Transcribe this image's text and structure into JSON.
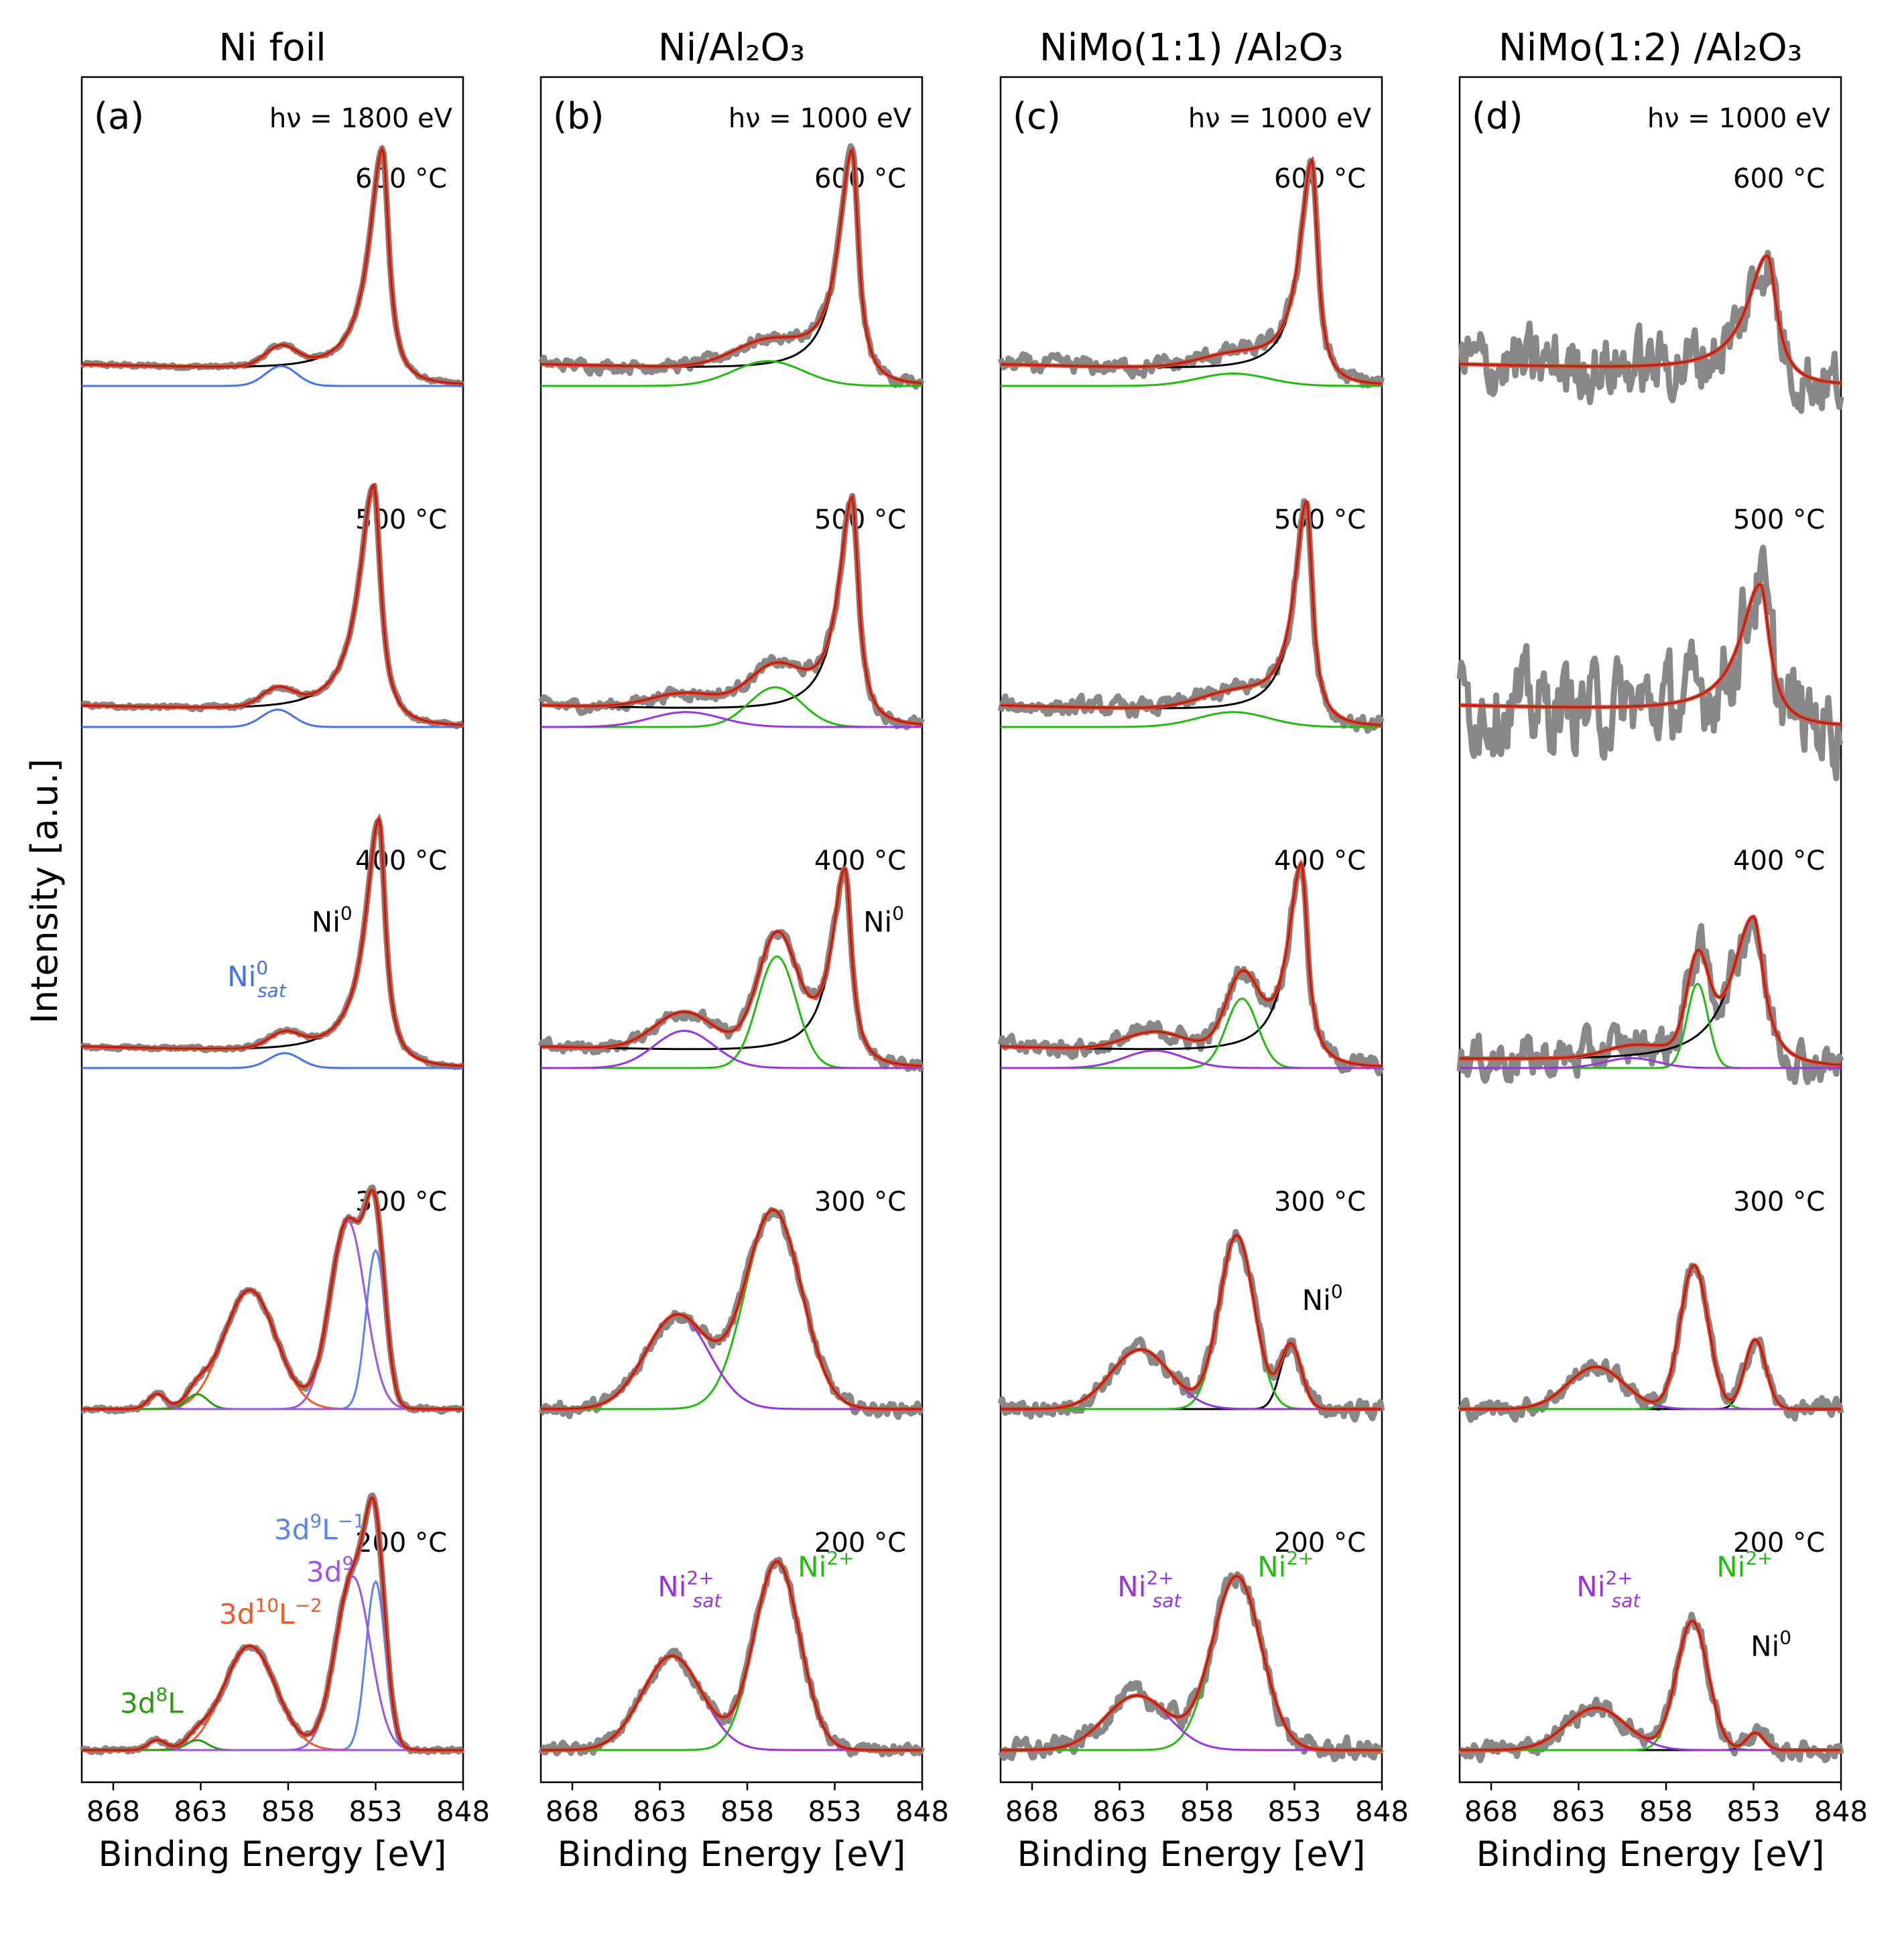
{
  "figure": {
    "ylabel": "Intensity [a.u.]",
    "xlabel": "Binding Energy [eV]"
  },
  "colors": {
    "data": "#888888",
    "envelope": "#e8412a",
    "background": "#000000",
    "ni0_sat": "#4472e8",
    "ni2": "#22bb11",
    "ni2_sat": "#9933dd",
    "d9L": "#5b82f0",
    "d9": "#9955ee",
    "d10L2": "#f05a2a",
    "d8L": "#2a9a10"
  },
  "chart_data": [
    {
      "type": "line",
      "title": "Ni foil",
      "panel_label": "(a)",
      "photon_energy": "hν = 1800 eV",
      "xlim": [
        869.8,
        848
      ],
      "xticks": [
        868,
        863,
        858,
        853,
        848
      ],
      "xtick_labels": [
        "868",
        "863",
        "858",
        "853",
        "848"
      ],
      "rows": [
        {
          "temperature": "600 °C",
          "noise": 0.006,
          "components": [
            {
              "kind": "bg_ni0",
              "color": "black",
              "pos": 852.6,
              "amp": 0.93,
              "w": 0.55,
              "bg": 0.05
            },
            {
              "kind": "gauss",
              "color": "ni0_sat",
              "pos": 858.4,
              "amp": 0.08,
              "w": 0.9
            }
          ]
        },
        {
          "temperature": "500 °C",
          "noise": 0.006,
          "components": [
            {
              "kind": "bg_ni0",
              "color": "black",
              "pos": 853.1,
              "amp": 0.95,
              "w": 0.6,
              "bg": 0.05
            },
            {
              "kind": "gauss",
              "color": "ni0_sat",
              "pos": 858.6,
              "amp": 0.07,
              "w": 0.9
            }
          ]
        },
        {
          "temperature": "400 °C",
          "noise": 0.006,
          "components": [
            {
              "kind": "bg_ni0",
              "color": "black",
              "pos": 852.8,
              "amp": 0.98,
              "w": 0.55,
              "bg": 0.05
            },
            {
              "kind": "gauss",
              "color": "ni0_sat",
              "pos": 858.2,
              "amp": 0.06,
              "w": 0.9
            }
          ]
        },
        {
          "temperature": "300 °C",
          "noise": 0.008,
          "components": [
            {
              "kind": "gauss",
              "color": "d9L",
              "pos": 853.0,
              "amp": 0.64,
              "w": 0.55
            },
            {
              "kind": "gauss",
              "color": "d9",
              "pos": 854.6,
              "amp": 0.76,
              "w": 1.0
            },
            {
              "kind": "gauss",
              "color": "d10L2",
              "pos": 860.2,
              "amp": 0.48,
              "w": 1.5
            },
            {
              "kind": "gauss",
              "color": "d8L",
              "pos": 863.2,
              "amp": 0.06,
              "w": 0.6
            },
            {
              "kind": "gauss",
              "color": "d9",
              "pos": 865.5,
              "amp": 0.06,
              "w": 0.5
            }
          ]
        },
        {
          "temperature": "200 °C",
          "noise": 0.008,
          "components": [
            {
              "kind": "gauss",
              "color": "d9L",
              "pos": 853.0,
              "amp": 0.68,
              "w": 0.55
            },
            {
              "kind": "gauss",
              "color": "d9",
              "pos": 854.3,
              "amp": 0.7,
              "w": 1.0
            },
            {
              "kind": "gauss",
              "color": "d10L2",
              "pos": 860.2,
              "amp": 0.42,
              "w": 1.5
            },
            {
              "kind": "gauss",
              "color": "d8L",
              "pos": 863.2,
              "amp": 0.04,
              "w": 0.6
            },
            {
              "kind": "gauss",
              "color": "d9",
              "pos": 865.5,
              "amp": 0.04,
              "w": 0.5
            }
          ]
        }
      ],
      "annotations": [
        {
          "row": 2,
          "text": "Ni",
          "sup": "0",
          "sub": "",
          "color": "black",
          "x": 855.5,
          "y": 0.55
        },
        {
          "row": 2,
          "text": "Ni",
          "sup": "0",
          "sub": "sat",
          "color": "ni0_sat",
          "x": 859.8,
          "y": 0.33
        },
        {
          "row": 4,
          "text": "3d",
          "sup": "9",
          "sub": "",
          "tail": "L",
          "tailsup": "−1",
          "color": "d9L",
          "x": 856.2,
          "y": 0.85
        },
        {
          "row": 4,
          "text": "3d",
          "sup": "9",
          "sub": "",
          "color": "d9",
          "x": 855.6,
          "y": 0.68
        },
        {
          "row": 4,
          "text": "3d",
          "sup": "10",
          "sub": "",
          "tail": "L",
          "tailsup": "−2",
          "color": "d10L2",
          "x": 859.0,
          "y": 0.51
        },
        {
          "row": 4,
          "text": "3d",
          "sup": "8",
          "sub": "",
          "tail": "L",
          "tailsup": "",
          "color": "d8L",
          "x": 865.8,
          "y": 0.15
        }
      ]
    },
    {
      "type": "line",
      "title": "Ni/Al₂O₃",
      "panel_label": "(b)",
      "photon_energy": "hν = 1000 eV",
      "xlim": [
        869.8,
        848
      ],
      "xticks": [
        868,
        863,
        858,
        853,
        848
      ],
      "xtick_labels": [
        "868",
        "863",
        "858",
        "853",
        "848"
      ],
      "rows": [
        {
          "temperature": "600 °C",
          "noise": 0.02,
          "components": [
            {
              "kind": "bg_ni0",
              "color": "black",
              "pos": 852.0,
              "amp": 0.92,
              "w": 0.55,
              "bg": 0.05
            },
            {
              "kind": "gauss",
              "color": "ni2",
              "pos": 856.8,
              "amp": 0.1,
              "w": 2.0
            }
          ]
        },
        {
          "temperature": "500 °C",
          "noise": 0.02,
          "components": [
            {
              "kind": "bg_ni0",
              "color": "black",
              "pos": 852.0,
              "amp": 0.9,
              "w": 0.55,
              "bg": 0.05
            },
            {
              "kind": "gauss",
              "color": "ni2",
              "pos": 856.4,
              "amp": 0.16,
              "w": 1.5
            },
            {
              "kind": "gauss",
              "color": "ni2_sat",
              "pos": 861.5,
              "amp": 0.06,
              "w": 2.0
            }
          ]
        },
        {
          "temperature": "400 °C",
          "noise": 0.02,
          "components": [
            {
              "kind": "bg_ni0",
              "color": "black",
              "pos": 852.4,
              "amp": 0.78,
              "w": 0.55,
              "bg": 0.05
            },
            {
              "kind": "gauss",
              "color": "ni2",
              "pos": 856.3,
              "amp": 0.45,
              "w": 1.1
            },
            {
              "kind": "gauss",
              "color": "ni2_sat",
              "pos": 861.6,
              "amp": 0.15,
              "w": 1.7
            }
          ]
        },
        {
          "temperature": "300 °C",
          "noise": 0.022,
          "components": [
            {
              "kind": "gauss",
              "color": "ni2",
              "pos": 856.5,
              "amp": 0.8,
              "w": 1.6
            },
            {
              "kind": "gauss",
              "color": "ni2_sat",
              "pos": 862.0,
              "amp": 0.38,
              "w": 1.8
            }
          ]
        },
        {
          "temperature": "200 °C",
          "noise": 0.02,
          "components": [
            {
              "kind": "gauss",
              "color": "ni2",
              "pos": 856.3,
              "amp": 0.76,
              "w": 1.3
            },
            {
              "kind": "gauss",
              "color": "ni2_sat",
              "pos": 862.3,
              "amp": 0.38,
              "w": 1.7
            }
          ]
        }
      ],
      "annotations": [
        {
          "row": 2,
          "text": "Ni",
          "sup": "0",
          "sub": "",
          "color": "black",
          "x": 850.2,
          "y": 0.55
        },
        {
          "row": 4,
          "text": "Ni",
          "sup": "2+",
          "sub": "sat",
          "color": "ni2_sat",
          "x": 861.3,
          "y": 0.62
        },
        {
          "row": 4,
          "text": "Ni",
          "sup": "2+",
          "sub": "",
          "color": "ni2",
          "x": 853.5,
          "y": 0.7
        }
      ]
    },
    {
      "type": "line",
      "title": "NiMo(1:1) /Al₂O₃",
      "panel_label": "(c)",
      "photon_energy": "hν = 1000 eV",
      "xlim": [
        869.8,
        848
      ],
      "xticks": [
        868,
        863,
        858,
        853,
        848
      ],
      "xtick_labels": [
        "868",
        "863",
        "858",
        "853",
        "848"
      ],
      "rows": [
        {
          "temperature": "600 °C",
          "noise": 0.028,
          "components": [
            {
              "kind": "bg_ni0",
              "color": "black",
              "pos": 852.0,
              "amp": 0.88,
              "w": 0.5,
              "bg": 0.05
            },
            {
              "kind": "gauss",
              "color": "ni2",
              "pos": 856.5,
              "amp": 0.05,
              "w": 2.0
            }
          ]
        },
        {
          "temperature": "500 °C",
          "noise": 0.028,
          "components": [
            {
              "kind": "bg_ni0",
              "color": "black",
              "pos": 852.3,
              "amp": 0.88,
              "w": 0.5,
              "bg": 0.05
            },
            {
              "kind": "gauss",
              "color": "ni2",
              "pos": 856.5,
              "amp": 0.06,
              "w": 2.0
            }
          ]
        },
        {
          "temperature": "400 °C",
          "noise": 0.03,
          "components": [
            {
              "kind": "bg_ni0",
              "color": "black",
              "pos": 852.6,
              "amp": 0.8,
              "w": 0.55,
              "bg": 0.05
            },
            {
              "kind": "gauss",
              "color": "ni2",
              "pos": 856.0,
              "amp": 0.28,
              "w": 0.9
            },
            {
              "kind": "gauss",
              "color": "ni2_sat",
              "pos": 861.0,
              "amp": 0.07,
              "w": 1.7
            }
          ]
        },
        {
          "temperature": "300 °C",
          "noise": 0.03,
          "components": [
            {
              "kind": "gauss",
              "color": "black",
              "pos": 853.2,
              "amp": 0.26,
              "w": 0.6
            },
            {
              "kind": "gauss",
              "color": "ni2",
              "pos": 856.3,
              "amp": 0.7,
              "w": 1.0
            },
            {
              "kind": "gauss",
              "color": "ni2_sat",
              "pos": 861.8,
              "amp": 0.24,
              "w": 1.7
            }
          ]
        },
        {
          "temperature": "200 °C",
          "noise": 0.035,
          "components": [
            {
              "kind": "gauss",
              "color": "ni2",
              "pos": 856.3,
              "amp": 0.7,
              "w": 1.4
            },
            {
              "kind": "gauss",
              "color": "ni2_sat",
              "pos": 862.0,
              "amp": 0.22,
              "w": 1.8
            }
          ]
        }
      ],
      "annotations": [
        {
          "row": 3,
          "text": "Ni",
          "sup": "0",
          "sub": "",
          "color": "black",
          "x": 851.4,
          "y": 0.4
        },
        {
          "row": 4,
          "text": "Ni",
          "sup": "2+",
          "sub": "sat",
          "color": "ni2_sat",
          "x": 861.3,
          "y": 0.62
        },
        {
          "row": 4,
          "text": "Ni",
          "sup": "2+",
          "sub": "",
          "color": "ni2",
          "x": 853.5,
          "y": 0.7
        }
      ]
    },
    {
      "type": "line",
      "title": "NiMo(1:2) /Al₂O₃",
      "panel_label": "(d)",
      "photon_energy": "hν = 1000 eV",
      "xlim": [
        869.8,
        848
      ],
      "xticks": [
        868,
        863,
        858,
        853,
        848
      ],
      "xtick_labels": [
        "868",
        "863",
        "858",
        "853",
        "848"
      ],
      "rows": [
        {
          "temperature": "600 °C",
          "noise": 0.11,
          "components": [
            {
              "kind": "bg_ni0",
              "color": "black",
              "pos": 852.2,
              "amp": 0.5,
              "w": 0.8,
              "bg": 0.05
            }
          ]
        },
        {
          "temperature": "500 °C",
          "noise": 0.14,
          "components": [
            {
              "kind": "bg_ni0",
              "color": "black",
              "pos": 852.6,
              "amp": 0.55,
              "w": 0.8,
              "bg": 0.05
            }
          ]
        },
        {
          "temperature": "400 °C",
          "noise": 0.07,
          "components": [
            {
              "kind": "bg_ni0",
              "color": "black",
              "pos": 853.0,
              "amp": 0.6,
              "w": 0.9,
              "bg": 0.02
            },
            {
              "kind": "gauss",
              "color": "ni2",
              "pos": 856.2,
              "amp": 0.34,
              "w": 0.6
            },
            {
              "kind": "gauss",
              "color": "ni2_sat",
              "pos": 860.0,
              "amp": 0.04,
              "w": 1.5
            }
          ]
        },
        {
          "temperature": "300 °C",
          "noise": 0.03,
          "components": [
            {
              "kind": "gauss",
              "color": "black",
              "pos": 852.9,
              "amp": 0.28,
              "w": 0.6
            },
            {
              "kind": "gauss",
              "color": "ni2",
              "pos": 856.4,
              "amp": 0.58,
              "w": 0.8
            },
            {
              "kind": "gauss",
              "color": "ni2_sat",
              "pos": 862.0,
              "amp": 0.17,
              "w": 1.6
            }
          ]
        },
        {
          "temperature": "200 °C",
          "noise": 0.03,
          "components": [
            {
              "kind": "gauss",
              "color": "black",
              "pos": 852.9,
              "amp": 0.07,
              "w": 0.5
            },
            {
              "kind": "gauss",
              "color": "ni2",
              "pos": 856.5,
              "amp": 0.52,
              "w": 0.9
            },
            {
              "kind": "gauss",
              "color": "ni2_sat",
              "pos": 862.0,
              "amp": 0.17,
              "w": 1.7
            }
          ]
        }
      ],
      "annotations": [
        {
          "row": 4,
          "text": "Ni",
          "sup": "2+",
          "sub": "sat",
          "color": "ni2_sat",
          "x": 861.3,
          "y": 0.62
        },
        {
          "row": 4,
          "text": "Ni",
          "sup": "2+",
          "sub": "",
          "color": "ni2",
          "x": 853.5,
          "y": 0.7
        },
        {
          "row": 4,
          "text": "Ni",
          "sup": "0",
          "sub": "",
          "color": "black",
          "x": 852.0,
          "y": 0.38
        }
      ]
    }
  ]
}
